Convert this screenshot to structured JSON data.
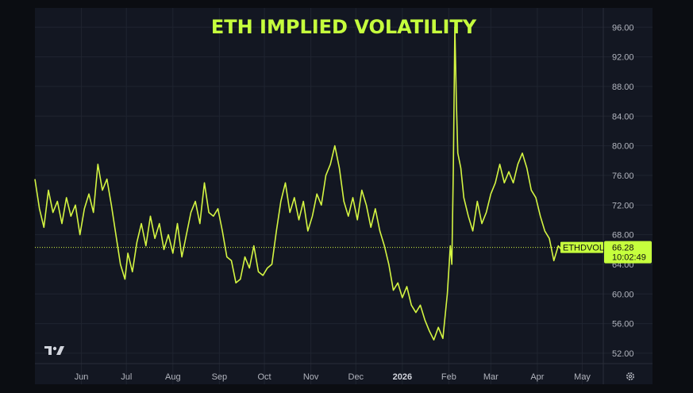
{
  "colors": {
    "background": "#131722",
    "outer": "#0b0d12",
    "grid": "#1f2430",
    "line": "#d4f542",
    "title": "#c6ff3d",
    "label_bg": "#c6ff3d",
    "axis_text": "#b2b5be"
  },
  "icons": {
    "logo": "tradingview-logo-icon",
    "settings": "gear-icon"
  },
  "chart_data": {
    "type": "line",
    "title": "ETH IMPLIED VOLATILITY",
    "xlabel": "",
    "ylabel": "",
    "grid": true,
    "ylim": [
      50.6,
      98.6
    ],
    "y_ticks": [
      "96.00",
      "92.00",
      "88.00",
      "84.00",
      "80.00",
      "76.00",
      "72.00",
      "68.00",
      "64.00",
      "60.00",
      "56.00",
      "52.00"
    ],
    "x_ticks": [
      {
        "label": "Jun",
        "date": "2025-06-01"
      },
      {
        "label": "Jul",
        "date": "2025-07-01"
      },
      {
        "label": "Aug",
        "date": "2025-08-01"
      },
      {
        "label": "Sep",
        "date": "2025-09-01"
      },
      {
        "label": "Oct",
        "date": "2025-10-01"
      },
      {
        "label": "Nov",
        "date": "2025-11-01"
      },
      {
        "label": "Dec",
        "date": "2025-12-01"
      },
      {
        "label": "2026",
        "date": "2026-01-01",
        "bold": true
      },
      {
        "label": "Feb",
        "date": "2026-02-01"
      },
      {
        "label": "Mar",
        "date": "2026-03-01"
      },
      {
        "label": "Apr",
        "date": "2026-04-01"
      },
      {
        "label": "May",
        "date": "2026-05-01"
      }
    ],
    "x_range": [
      "2025-05-01",
      "2026-05-15"
    ],
    "series": [
      {
        "name": "ETHDVOL",
        "last_value": "66.28",
        "last_time": "10:02:49",
        "points": [
          [
            "2025-05-01",
            75.5
          ],
          [
            "2025-05-04",
            71.5
          ],
          [
            "2025-05-07",
            69.0
          ],
          [
            "2025-05-10",
            74.0
          ],
          [
            "2025-05-13",
            71.0
          ],
          [
            "2025-05-16",
            72.5
          ],
          [
            "2025-05-19",
            69.5
          ],
          [
            "2025-05-22",
            73.0
          ],
          [
            "2025-05-25",
            70.5
          ],
          [
            "2025-05-28",
            72.0
          ],
          [
            "2025-05-31",
            68.0
          ],
          [
            "2025-06-03",
            71.5
          ],
          [
            "2025-06-06",
            73.5
          ],
          [
            "2025-06-09",
            71.0
          ],
          [
            "2025-06-12",
            77.5
          ],
          [
            "2025-06-15",
            74.0
          ],
          [
            "2025-06-18",
            75.5
          ],
          [
            "2025-06-21",
            72.0
          ],
          [
            "2025-06-24",
            68.0
          ],
          [
            "2025-06-27",
            64.0
          ],
          [
            "2025-06-30",
            62.0
          ],
          [
            "2025-07-02",
            65.5
          ],
          [
            "2025-07-05",
            63.0
          ],
          [
            "2025-07-08",
            67.0
          ],
          [
            "2025-07-11",
            69.5
          ],
          [
            "2025-07-14",
            66.5
          ],
          [
            "2025-07-17",
            70.5
          ],
          [
            "2025-07-20",
            67.5
          ],
          [
            "2025-07-23",
            69.5
          ],
          [
            "2025-07-26",
            66.0
          ],
          [
            "2025-07-29",
            68.0
          ],
          [
            "2025-08-01",
            65.5
          ],
          [
            "2025-08-04",
            69.5
          ],
          [
            "2025-08-07",
            65.0
          ],
          [
            "2025-08-10",
            68.0
          ],
          [
            "2025-08-13",
            71.0
          ],
          [
            "2025-08-16",
            72.5
          ],
          [
            "2025-08-19",
            69.5
          ],
          [
            "2025-08-22",
            75.0
          ],
          [
            "2025-08-25",
            71.0
          ],
          [
            "2025-08-28",
            70.5
          ],
          [
            "2025-08-31",
            71.5
          ],
          [
            "2025-09-03",
            68.5
          ],
          [
            "2025-09-06",
            65.0
          ],
          [
            "2025-09-09",
            64.5
          ],
          [
            "2025-09-12",
            61.5
          ],
          [
            "2025-09-15",
            62.0
          ],
          [
            "2025-09-18",
            65.0
          ],
          [
            "2025-09-21",
            63.5
          ],
          [
            "2025-09-24",
            66.5
          ],
          [
            "2025-09-27",
            63.0
          ],
          [
            "2025-09-30",
            62.5
          ],
          [
            "2025-10-03",
            63.5
          ],
          [
            "2025-10-06",
            64.0
          ],
          [
            "2025-10-09",
            68.5
          ],
          [
            "2025-10-12",
            72.5
          ],
          [
            "2025-10-15",
            75.0
          ],
          [
            "2025-10-18",
            71.0
          ],
          [
            "2025-10-21",
            73.0
          ],
          [
            "2025-10-24",
            70.0
          ],
          [
            "2025-10-27",
            72.5
          ],
          [
            "2025-10-30",
            68.5
          ],
          [
            "2025-11-02",
            70.5
          ],
          [
            "2025-11-05",
            73.5
          ],
          [
            "2025-11-08",
            72.0
          ],
          [
            "2025-11-11",
            76.0
          ],
          [
            "2025-11-14",
            77.5
          ],
          [
            "2025-11-17",
            80.0
          ],
          [
            "2025-11-20",
            77.0
          ],
          [
            "2025-11-23",
            72.5
          ],
          [
            "2025-11-26",
            70.5
          ],
          [
            "2025-11-29",
            73.0
          ],
          [
            "2025-12-02",
            70.0
          ],
          [
            "2025-12-05",
            74.0
          ],
          [
            "2025-12-08",
            72.0
          ],
          [
            "2025-12-11",
            69.0
          ],
          [
            "2025-12-14",
            71.5
          ],
          [
            "2025-12-17",
            68.5
          ],
          [
            "2025-12-20",
            66.5
          ],
          [
            "2025-12-23",
            64.0
          ],
          [
            "2025-12-26",
            60.5
          ],
          [
            "2025-12-29",
            61.5
          ],
          [
            "2026-01-01",
            59.5
          ],
          [
            "2026-01-04",
            61.0
          ],
          [
            "2026-01-07",
            58.5
          ],
          [
            "2026-01-10",
            57.5
          ],
          [
            "2026-01-13",
            58.5
          ],
          [
            "2026-01-16",
            56.5
          ],
          [
            "2026-01-19",
            55.0
          ],
          [
            "2026-01-22",
            53.8
          ],
          [
            "2026-01-25",
            55.5
          ],
          [
            "2026-01-28",
            54.0
          ],
          [
            "2026-01-31",
            60.0
          ],
          [
            "2026-02-02",
            66.5
          ],
          [
            "2026-02-03",
            64.0
          ],
          [
            "2026-02-04",
            77.0
          ],
          [
            "2026-02-05",
            96.0
          ],
          [
            "2026-02-06",
            86.0
          ],
          [
            "2026-02-07",
            79.0
          ],
          [
            "2026-02-09",
            77.0
          ],
          [
            "2026-02-11",
            73.0
          ],
          [
            "2026-02-14",
            70.5
          ],
          [
            "2026-02-17",
            68.5
          ],
          [
            "2026-02-20",
            72.5
          ],
          [
            "2026-02-23",
            69.5
          ],
          [
            "2026-02-26",
            71.0
          ],
          [
            "2026-03-01",
            73.5
          ],
          [
            "2026-03-04",
            75.0
          ],
          [
            "2026-03-07",
            77.5
          ],
          [
            "2026-03-10",
            75.0
          ],
          [
            "2026-03-13",
            76.5
          ],
          [
            "2026-03-16",
            75.0
          ],
          [
            "2026-03-19",
            77.5
          ],
          [
            "2026-03-22",
            79.0
          ],
          [
            "2026-03-25",
            77.0
          ],
          [
            "2026-03-28",
            74.0
          ],
          [
            "2026-03-31",
            73.0
          ],
          [
            "2026-04-03",
            70.5
          ],
          [
            "2026-04-06",
            68.5
          ],
          [
            "2026-04-09",
            67.5
          ],
          [
            "2026-04-12",
            64.5
          ],
          [
            "2026-04-15",
            66.5
          ],
          [
            "2026-04-17",
            66.0
          ],
          [
            "2026-04-19",
            66.28
          ]
        ]
      }
    ]
  }
}
